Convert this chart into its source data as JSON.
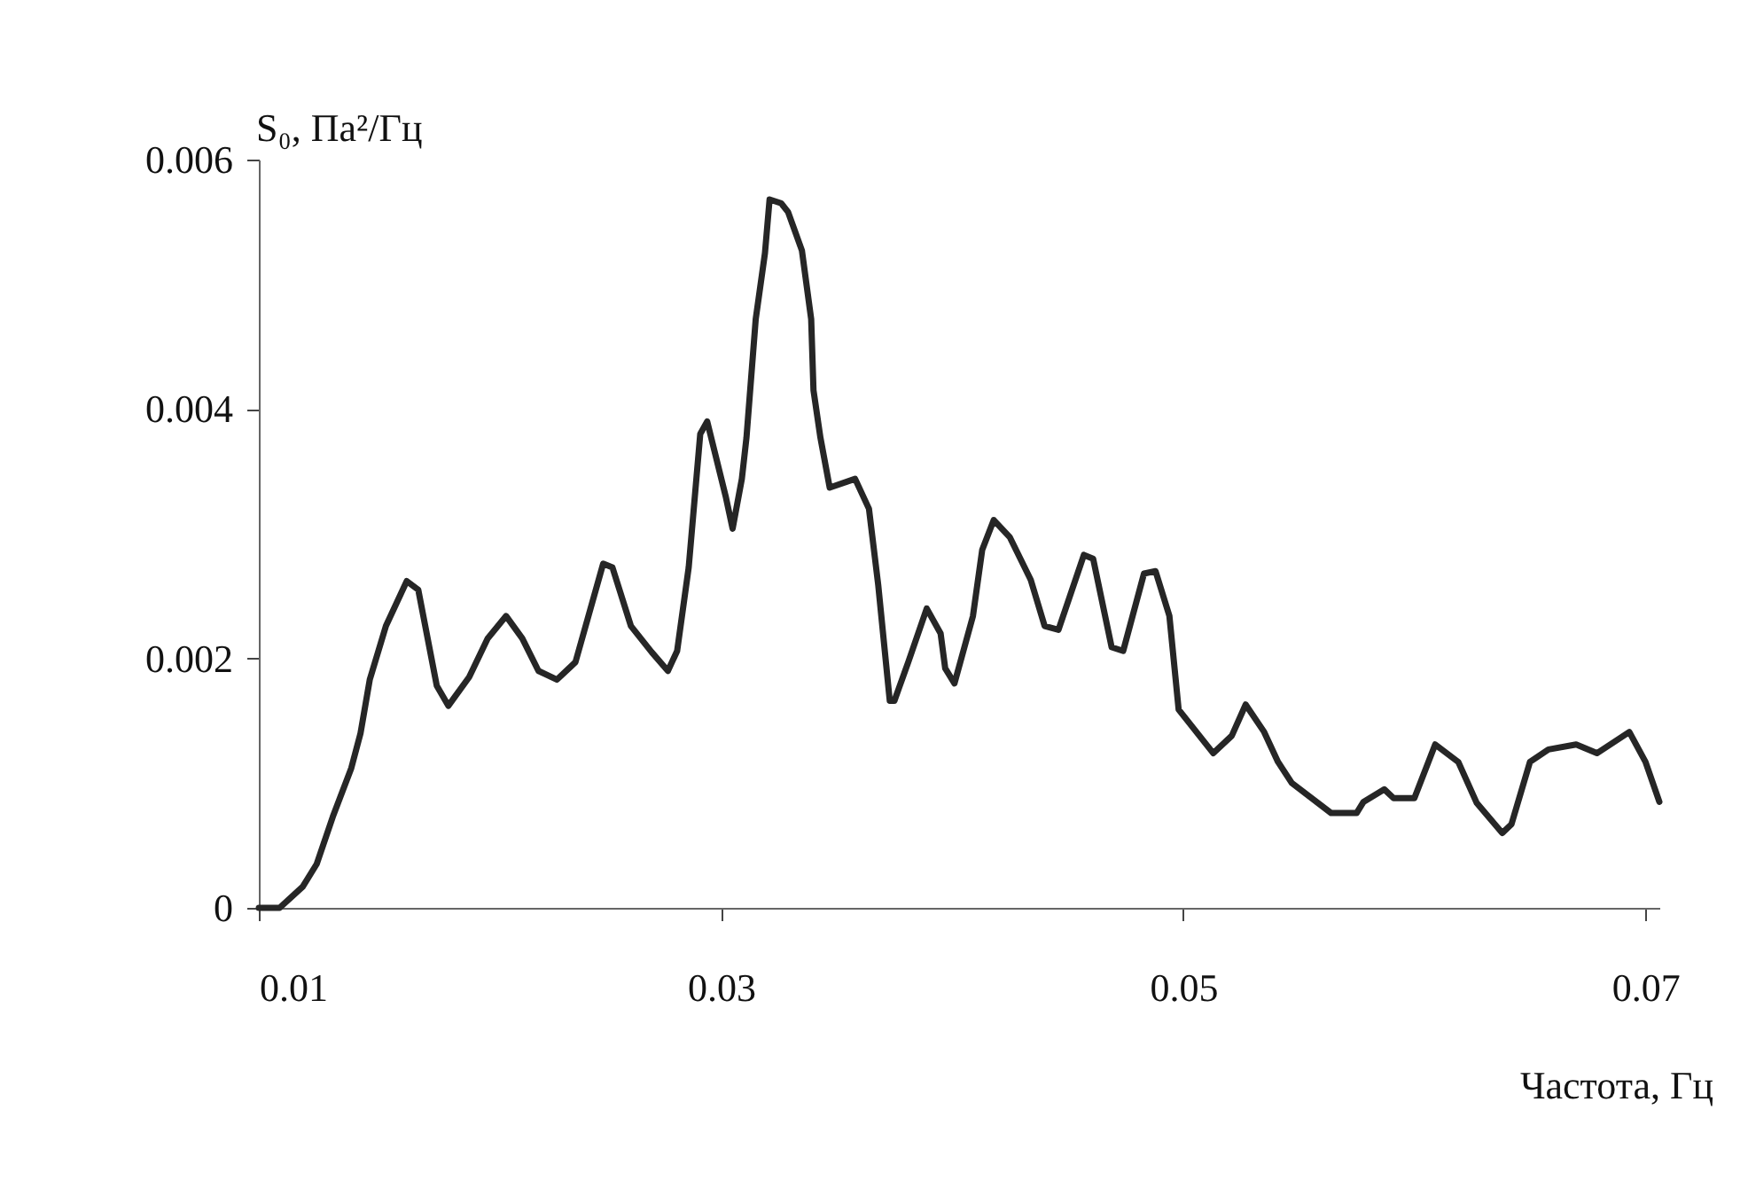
{
  "chart_data": {
    "type": "line",
    "xlabel": "Частота, Гц",
    "ylabel": "S₀, Па²/Гц",
    "xlim": [
      0.01,
      0.0706
    ],
    "ylim": [
      0,
      0.006
    ],
    "xticks": [
      0.01,
      0.03,
      0.05,
      0.07
    ],
    "yticks": [
      0,
      0.002,
      0.004,
      0.006
    ],
    "grid": false,
    "legend": false,
    "marker": "none",
    "line_style": "solid",
    "x": [
      0.01,
      0.0109,
      0.0119,
      0.0125,
      0.0132,
      0.014,
      0.0144,
      0.0148,
      0.0155,
      0.0164,
      0.0169,
      0.0177,
      0.0182,
      0.0191,
      0.0199,
      0.0207,
      0.0214,
      0.0221,
      0.0229,
      0.0237,
      0.0249,
      0.0253,
      0.0261,
      0.027,
      0.0277,
      0.0281,
      0.0286,
      0.0291,
      0.0294,
      0.0302,
      0.0305,
      0.0309,
      0.0311,
      0.0315,
      0.0319,
      0.0321,
      0.0326,
      0.0329,
      0.0335,
      0.0339,
      0.034,
      0.0343,
      0.0347,
      0.0358,
      0.0364,
      0.0368,
      0.0373,
      0.0375,
      0.0381,
      0.0389,
      0.0395,
      0.0397,
      0.0401,
      0.0409,
      0.0413,
      0.0418,
      0.0425,
      0.0434,
      0.044,
      0.0446,
      0.0457,
      0.0461,
      0.0469,
      0.0474,
      0.0483,
      0.0488,
      0.0494,
      0.0498,
      0.0513,
      0.0521,
      0.0527,
      0.0535,
      0.0541,
      0.0547,
      0.0564,
      0.0575,
      0.0578,
      0.0587,
      0.0591,
      0.06,
      0.0609,
      0.0619,
      0.0627,
      0.0638,
      0.0642,
      0.065,
      0.0658,
      0.067,
      0.0679,
      0.0693,
      0.07,
      0.0706
    ],
    "series": [
      {
        "color": "#262626",
        "values": [
          0,
          0,
          0.00017,
          0.00035,
          0.00073,
          0.00112,
          0.0014,
          0.00183,
          0.00226,
          0.00262,
          0.00255,
          0.00178,
          0.00162,
          0.00185,
          0.00216,
          0.00234,
          0.00216,
          0.0019,
          0.00183,
          0.00197,
          0.00276,
          0.00273,
          0.00226,
          0.00205,
          0.0019,
          0.00206,
          0.00273,
          0.0038,
          0.0039,
          0.0033,
          0.00304,
          0.00344,
          0.00377,
          0.00472,
          0.00525,
          0.00568,
          0.00565,
          0.00558,
          0.00527,
          0.00472,
          0.00415,
          0.00377,
          0.00337,
          0.00344,
          0.0032,
          0.00259,
          0.00166,
          0.00166,
          0.00197,
          0.0024,
          0.0022,
          0.00192,
          0.0018,
          0.00234,
          0.00287,
          0.00311,
          0.00297,
          0.00263,
          0.00226,
          0.00223,
          0.00283,
          0.0028,
          0.00209,
          0.00206,
          0.00268,
          0.0027,
          0.00234,
          0.00159,
          0.00124,
          0.00138,
          0.00163,
          0.00141,
          0.00117,
          0.001,
          0.00076,
          0.00076,
          0.00085,
          0.00095,
          0.00088,
          0.00088,
          0.00131,
          0.00117,
          0.00084,
          0.0006,
          0.00067,
          0.00117,
          0.00127,
          0.00131,
          0.00124,
          0.00141,
          0.00117,
          0.00085
        ]
      }
    ]
  }
}
